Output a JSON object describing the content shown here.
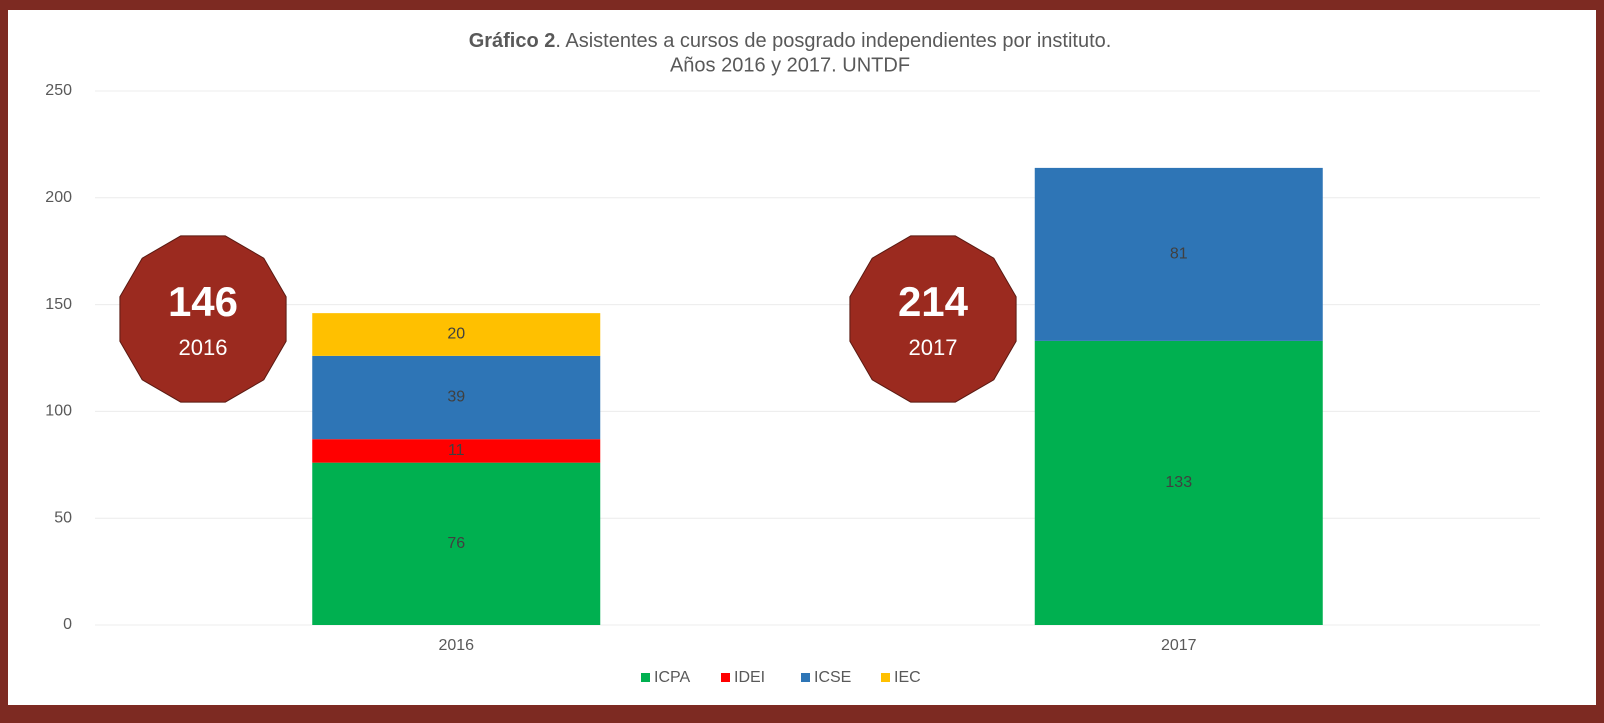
{
  "chart_data": {
    "type": "stacked_bar",
    "title": {
      "bold": "Gráfico 2",
      "rest": ". Asistentes a cursos de posgrado independientes por instituto.",
      "line2": "Años 2016 y 2017. UNTDF"
    },
    "categories": [
      "2016",
      "2017"
    ],
    "series": [
      {
        "name": "ICPA",
        "color": "#00b050",
        "values": [
          76,
          133
        ]
      },
      {
        "name": "IDEI",
        "color": "#ff0000",
        "values": [
          11,
          null
        ]
      },
      {
        "name": "ICSE",
        "color": "#2e75b6",
        "values": [
          39,
          81
        ]
      },
      {
        "name": "IEC",
        "color": "#ffc000",
        "values": [
          20,
          null
        ]
      }
    ],
    "ylim": [
      0,
      250
    ],
    "yticks": [
      0,
      50,
      100,
      150,
      200,
      250
    ],
    "grid": true,
    "legend": "bottom",
    "annotations": [
      {
        "value": 146,
        "label": "2016",
        "color": "#9b2a1f"
      },
      {
        "value": 214,
        "label": "2017",
        "color": "#9b2a1f"
      }
    ]
  }
}
